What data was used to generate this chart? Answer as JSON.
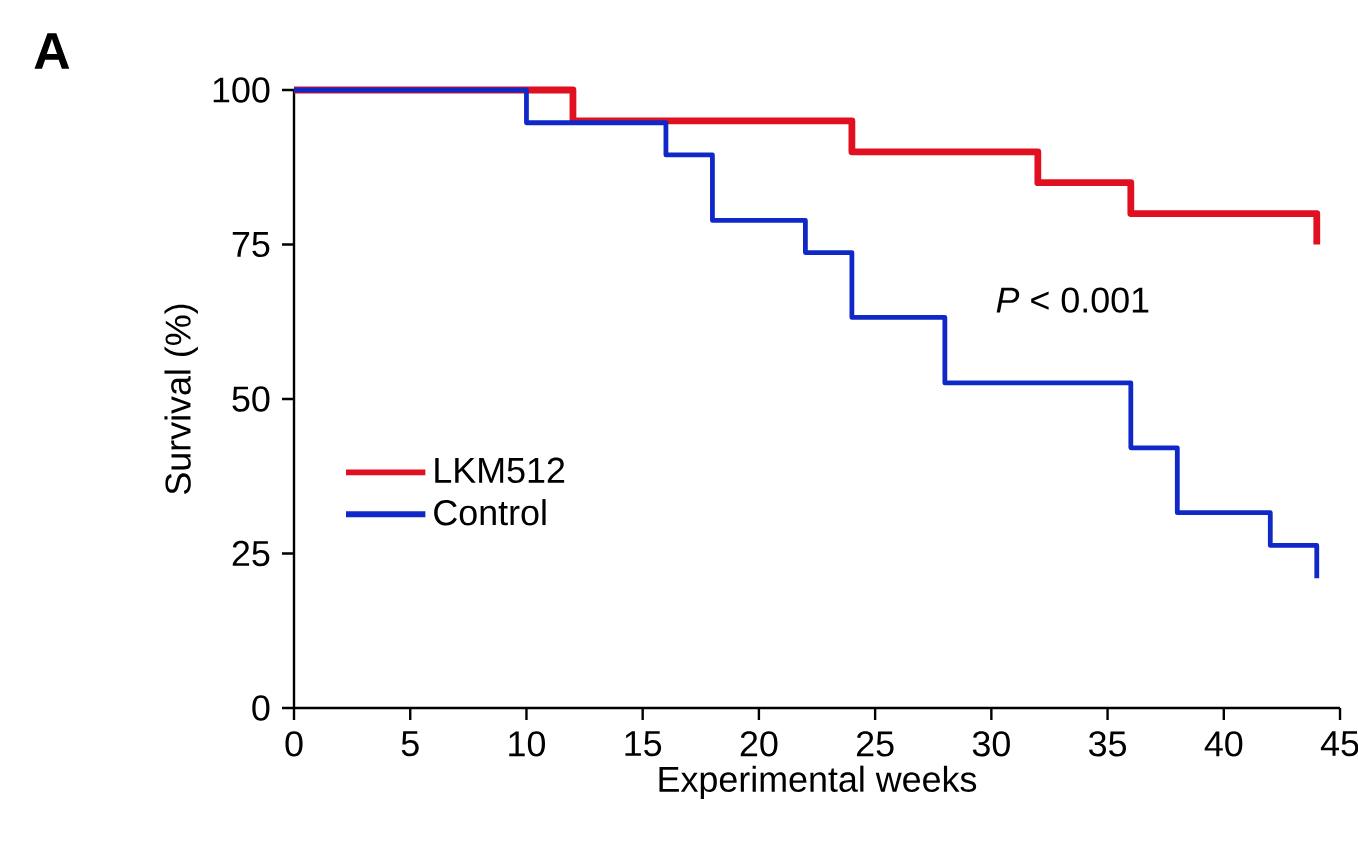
{
  "chart_data": {
    "type": "step",
    "xlabel": "Experimental weeks",
    "ylabel": "Survival (%)",
    "xlim": [
      0,
      45
    ],
    "ylim": [
      0,
      100
    ],
    "xticks": [
      0,
      5,
      10,
      15,
      20,
      25,
      30,
      35,
      40,
      45
    ],
    "yticks": [
      0,
      25,
      50,
      75,
      100
    ],
    "legend": "bottom left",
    "grid": false,
    "marker": "none",
    "line_style": "solid",
    "annotations": [
      "A",
      "*P* < 0.001"
    ],
    "series": [
      {
        "name": "LKM512",
        "color": "#e01020",
        "x": [
          0,
          12,
          24,
          32,
          36,
          44
        ],
        "values": [
          100,
          95,
          90,
          85,
          80,
          75
        ]
      },
      {
        "name": "Control",
        "color": "#1028c8",
        "x": [
          0,
          10,
          16,
          18,
          22,
          24,
          28,
          36,
          38,
          42,
          44
        ],
        "values": [
          100,
          94.7,
          89.5,
          78.9,
          73.7,
          63.2,
          52.6,
          42.1,
          31.6,
          26.3,
          21
        ]
      }
    ]
  }
}
